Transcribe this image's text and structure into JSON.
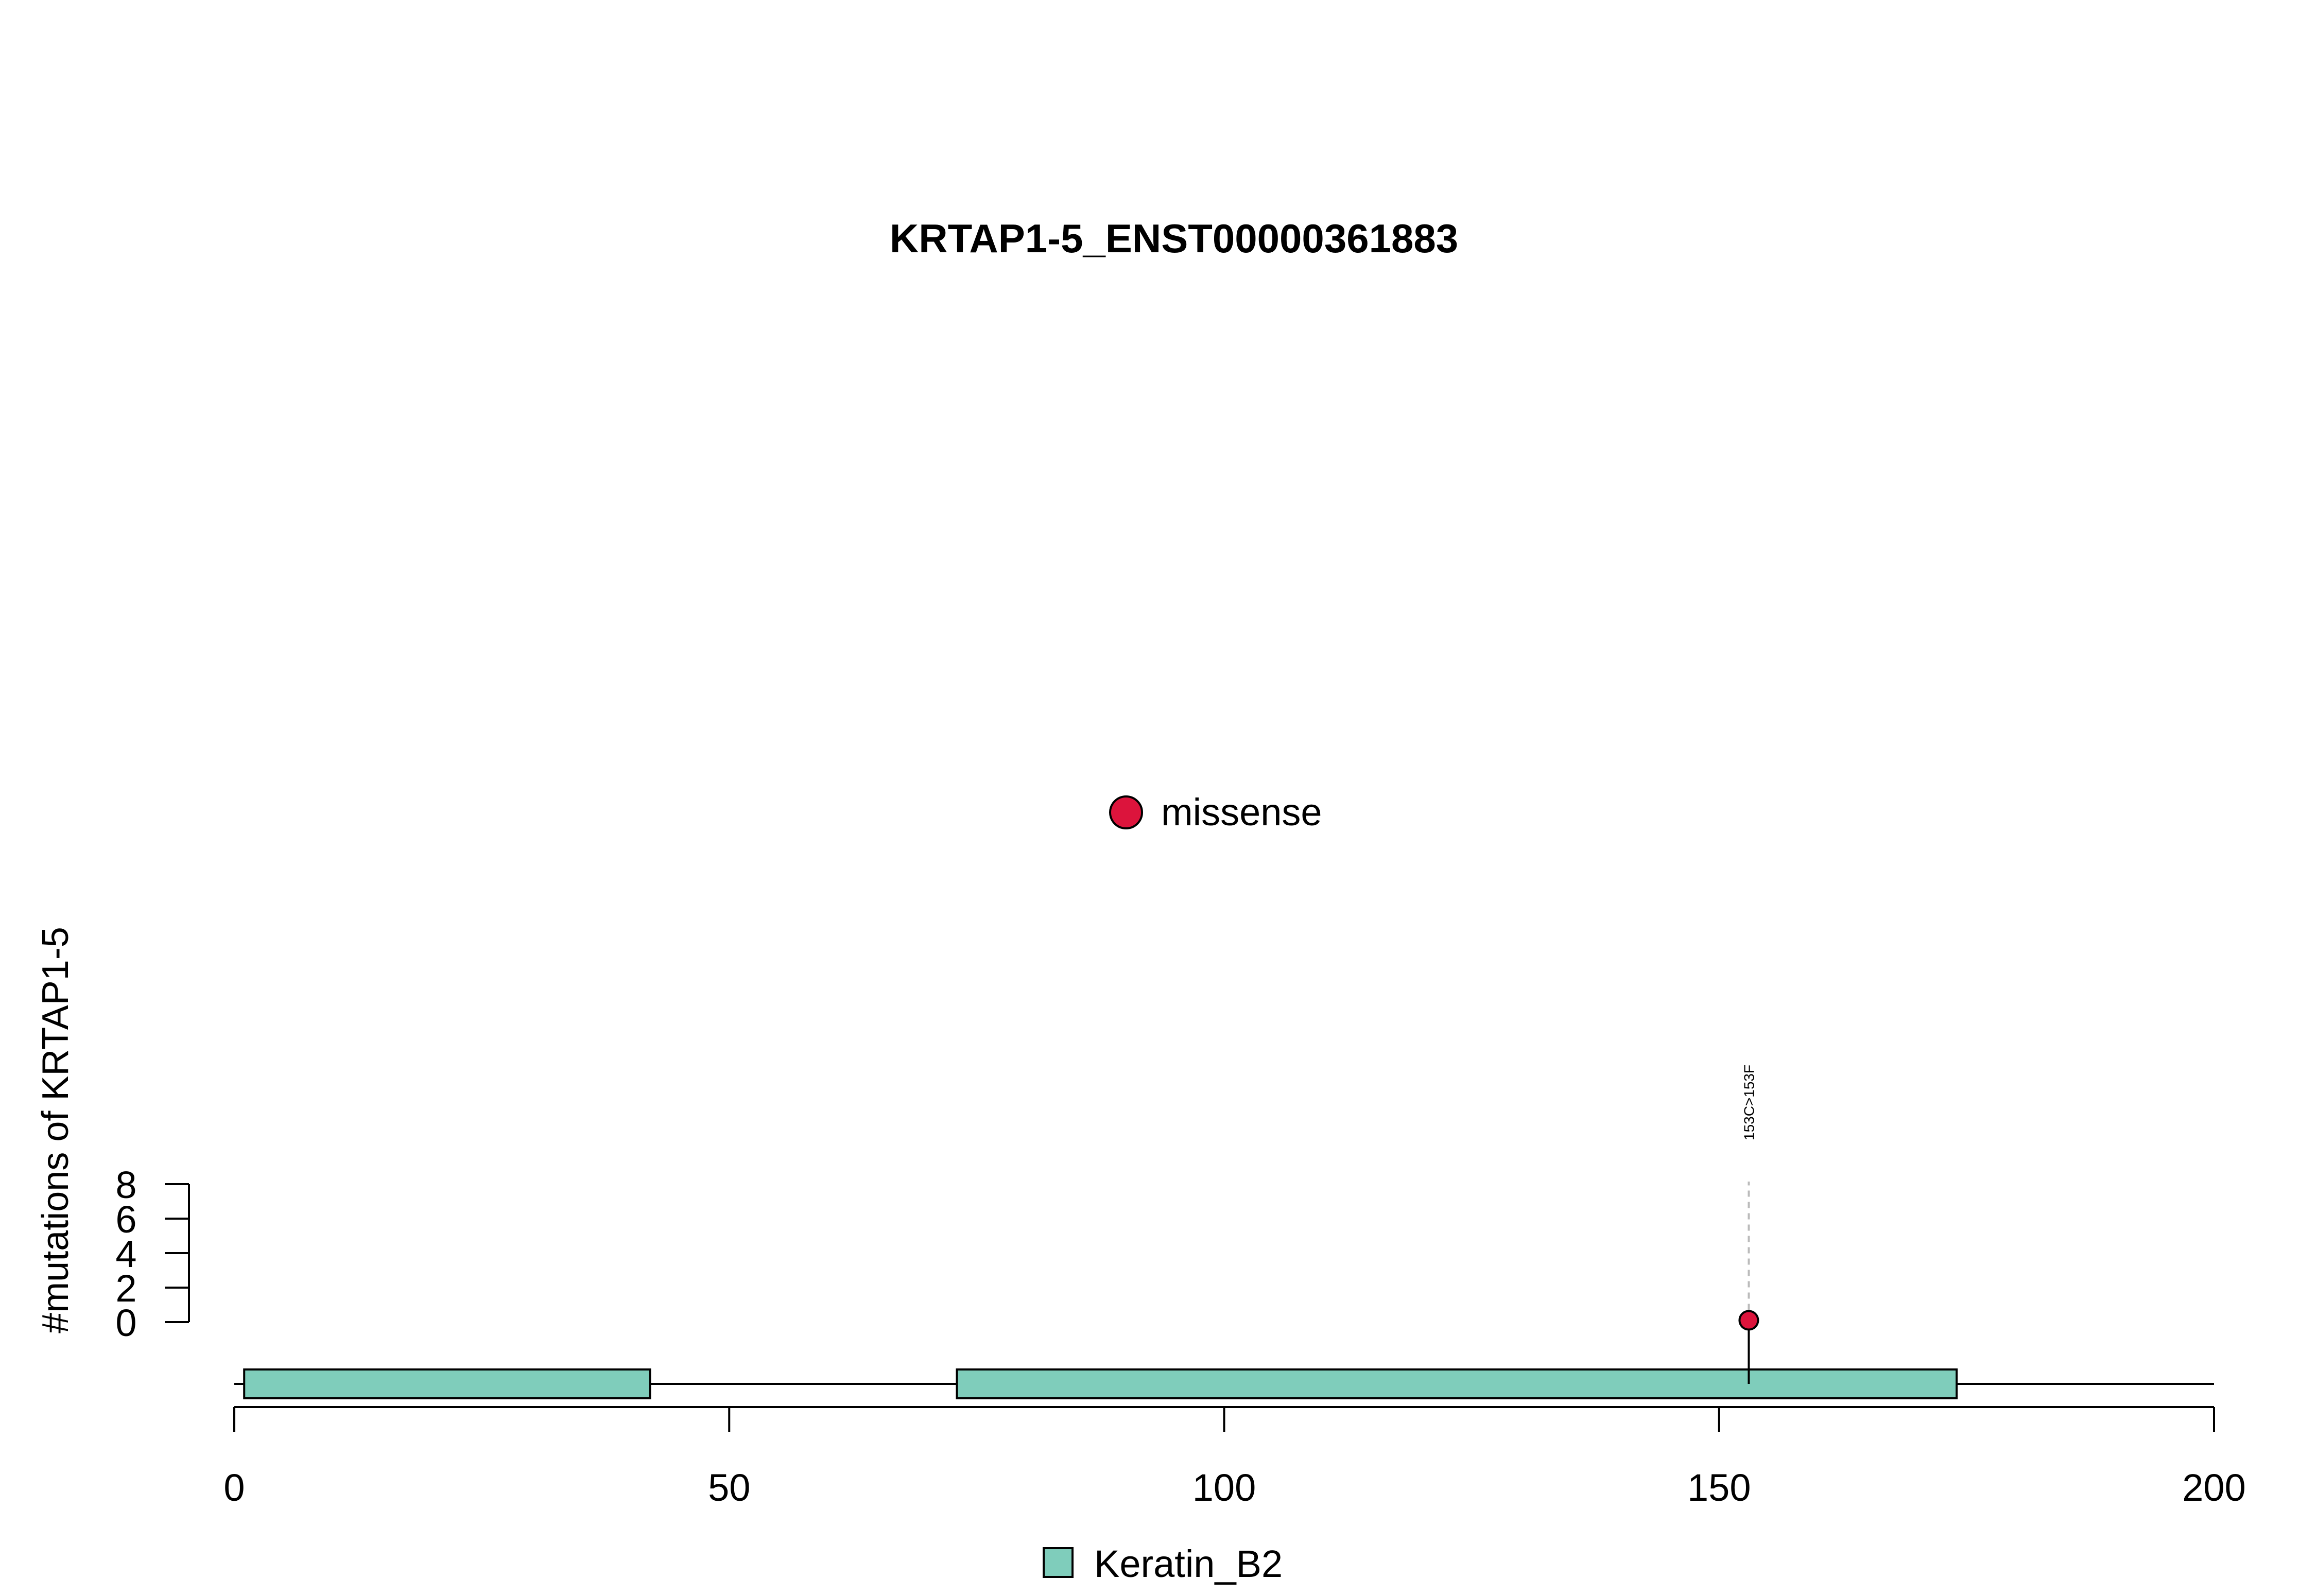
{
  "chart_data": {
    "type": "lollipop",
    "title": "KRTAP1-5_ENST00000361883",
    "ylabel": "#mutations of KRTAP1-5",
    "xlabel": "",
    "xlim": [
      0,
      200
    ],
    "ylim": [
      0,
      8
    ],
    "x_ticks": [
      0,
      50,
      100,
      150,
      200
    ],
    "y_ticks": [
      0,
      2,
      4,
      6,
      8
    ],
    "protein_length": 200,
    "mutation_legend": [
      {
        "label": "missense",
        "color": "#DC143C"
      }
    ],
    "mutations": [
      {
        "position": 153,
        "count": 1,
        "type": "missense",
        "label": "153C>153F",
        "color": "#DC143C"
      }
    ],
    "domain_legend": [
      {
        "label": "Keratin_B2",
        "color": "#7FCDBB"
      }
    ],
    "domains": [
      {
        "name": "Keratin_B2",
        "start": 1,
        "end": 42,
        "color": "#7FCDBB"
      },
      {
        "name": "Keratin_B2",
        "start": 73,
        "end": 174,
        "color": "#7FCDBB"
      }
    ]
  }
}
